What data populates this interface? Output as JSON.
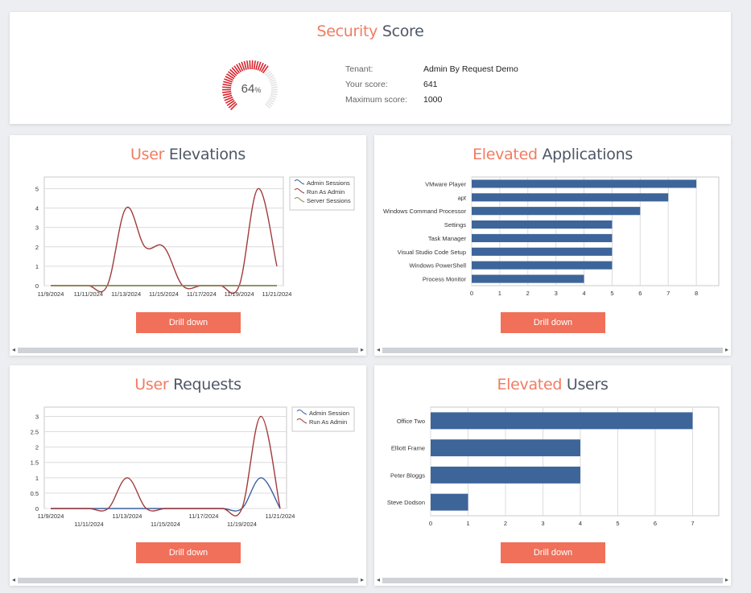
{
  "security": {
    "title_hl": "Security",
    "title_rest": " Score",
    "gauge_percent": 64,
    "gauge_value": "64",
    "gauge_unit": "%",
    "tenant_label": "Tenant:",
    "tenant_value": "Admin By Request Demo",
    "score_label": "Your score:",
    "score_value": "641",
    "max_label": "Maximum score:",
    "max_value": "1000",
    "colors": {
      "fill": "#d9232d",
      "empty": "#e4e4e4"
    }
  },
  "user_elevations": {
    "title_hl": "User",
    "title_rest": " Elevations",
    "button": "Drill down",
    "chart_data": {
      "type": "line",
      "x": [
        "11/9/2024",
        "11/10/2024",
        "11/11/2024",
        "11/12/2024",
        "11/13/2024",
        "11/14/2024",
        "11/15/2024",
        "11/16/2024",
        "11/17/2024",
        "11/18/2024",
        "11/19/2024",
        "11/20/2024",
        "11/21/2024"
      ],
      "xticks": [
        "11/9/2024",
        "11/11/2024",
        "11/13/2024",
        "11/15/2024",
        "11/17/2024",
        "11/19/2024",
        "11/21/2024"
      ],
      "yticks": [
        "0",
        "1",
        "2",
        "3",
        "4",
        "5"
      ],
      "ylim": [
        0,
        5.6
      ],
      "legend_position": "top-right",
      "series": [
        {
          "name": "Admin Sessions",
          "color": "#3b5f9e",
          "values": [
            0,
            0,
            0,
            0,
            0,
            0,
            0,
            0,
            0,
            0,
            0,
            0,
            0
          ]
        },
        {
          "name": "Run As Admin",
          "color": "#a13b3b",
          "values": [
            0,
            0,
            0,
            0,
            4,
            2,
            2,
            0,
            0,
            0,
            0,
            5,
            1
          ]
        },
        {
          "name": "Server Sessions",
          "color": "#8f8a52",
          "values": [
            0,
            0,
            0,
            0,
            0,
            0,
            0,
            0,
            0,
            0,
            0,
            0,
            0
          ]
        }
      ]
    }
  },
  "elevated_applications": {
    "title_hl": "Elevated",
    "title_rest": " Applications",
    "button": "Drill down",
    "chart_data": {
      "type": "bar",
      "orientation": "horizontal",
      "categories": [
        "VMware Player",
        "apt",
        "Windows Command Processor",
        "Settings",
        "Task Manager",
        "Visual Studio Code Setup",
        "Windows PowerShell",
        "Process Monitor"
      ],
      "values": [
        8,
        7,
        6,
        5,
        5,
        5,
        5,
        4
      ],
      "xticks": [
        "0",
        "1",
        "2",
        "3",
        "4",
        "5",
        "6",
        "7",
        "8"
      ],
      "xlim": [
        0,
        8.8
      ],
      "color": "#3d659a"
    }
  },
  "user_requests": {
    "title_hl": "User",
    "title_rest": " Requests",
    "button": "Drill down",
    "chart_data": {
      "type": "line",
      "x": [
        "11/9/2024",
        "11/10/2024",
        "11/11/2024",
        "11/12/2024",
        "11/13/2024",
        "11/14/2024",
        "11/15/2024",
        "11/16/2024",
        "11/17/2024",
        "11/18/2024",
        "11/19/2024",
        "11/20/2024",
        "11/21/2024"
      ],
      "xticks_upper": [
        "11/9/2024",
        "11/13/2024",
        "11/17/2024",
        "11/21/2024"
      ],
      "xticks_lower": [
        "11/11/2024",
        "11/15/2024",
        "11/19/2024"
      ],
      "yticks": [
        "0",
        "0.5",
        "1",
        "1.5",
        "2",
        "2.5",
        "3"
      ],
      "ylim": [
        0,
        3.3
      ],
      "legend_position": "top-right",
      "series": [
        {
          "name": "Admin Session",
          "color": "#3b5f9e",
          "values": [
            0,
            0,
            0,
            0,
            0,
            0,
            0,
            0,
            0,
            0,
            0,
            1,
            0
          ]
        },
        {
          "name": "Run As Admin",
          "color": "#a13b3b",
          "values": [
            0,
            0,
            0,
            0,
            1,
            0,
            0,
            0,
            0,
            0,
            0,
            3,
            0
          ]
        }
      ]
    }
  },
  "elevated_users": {
    "title_hl": "Elevated",
    "title_rest": " Users",
    "button": "Drill down",
    "chart_data": {
      "type": "bar",
      "orientation": "horizontal",
      "categories": [
        "Office Two",
        "Elliott Frame",
        "Peter Bloggs",
        "Steve Dodson"
      ],
      "values": [
        7,
        4,
        4,
        1
      ],
      "xticks": [
        "0",
        "1",
        "2",
        "3",
        "4",
        "5",
        "6",
        "7"
      ],
      "xlim": [
        0,
        7.7
      ],
      "color": "#3d659a"
    }
  }
}
